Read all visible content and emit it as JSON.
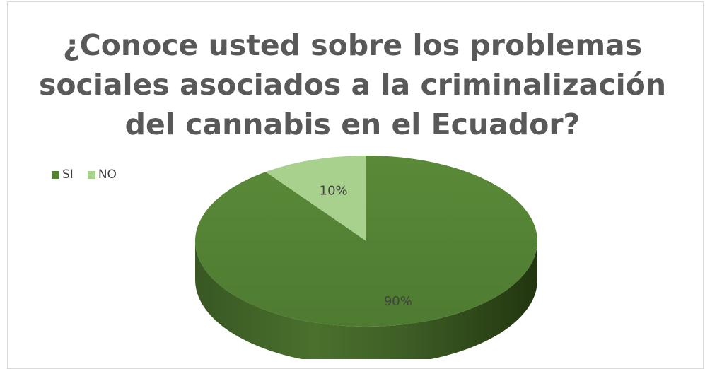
{
  "chart_data": {
    "type": "pie",
    "title_lines": [
      "¿Conoce usted sobre los problemas",
      "sociales asociados a la criminalización",
      "del cannabis en el Ecuador?"
    ],
    "categories": [
      "SI",
      "NO"
    ],
    "values": [
      90,
      10
    ],
    "data_labels": [
      "90%",
      "10%"
    ],
    "colors": [
      "#548235",
      "#a9d18e"
    ],
    "legend_position": "top-left",
    "style": "3d"
  }
}
